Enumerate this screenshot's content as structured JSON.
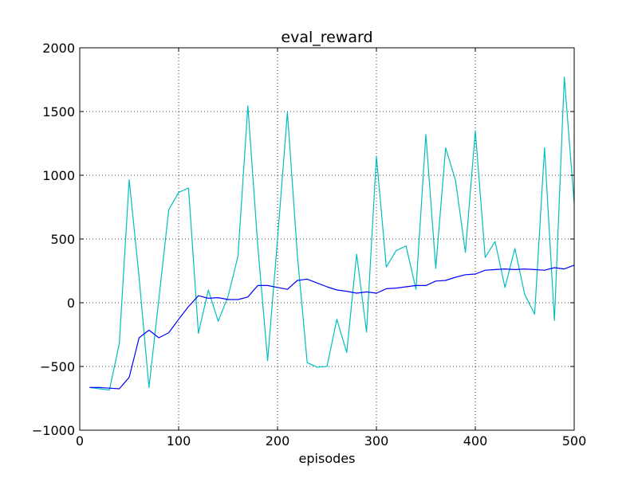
{
  "chart_data": {
    "type": "line",
    "title": "eval_reward",
    "xlabel": "episodes",
    "ylabel": "",
    "xlim": [
      0,
      500
    ],
    "ylim": [
      -1000,
      2000
    ],
    "xticks": [
      0,
      100,
      200,
      300,
      400,
      500
    ],
    "yticks": [
      -1000,
      -500,
      0,
      500,
      1000,
      1500,
      2000
    ],
    "xtick_labels": [
      "0",
      "100",
      "200",
      "300",
      "400",
      "500"
    ],
    "ytick_labels": [
      "−1000",
      "−500",
      "0",
      "500",
      "1000",
      "1500",
      "2000"
    ],
    "grid": true,
    "x": [
      10,
      20,
      30,
      40,
      50,
      60,
      70,
      80,
      90,
      100,
      110,
      120,
      130,
      140,
      150,
      160,
      170,
      180,
      190,
      200,
      210,
      220,
      230,
      240,
      250,
      260,
      270,
      280,
      290,
      300,
      310,
      320,
      330,
      340,
      350,
      360,
      370,
      380,
      390,
      400,
      410,
      420,
      430,
      440,
      450,
      460,
      470,
      480,
      490,
      500
    ],
    "series": [
      {
        "color": "#00bfbf",
        "values": [
          -665,
          -675,
          -685,
          -320,
          965,
          200,
          -665,
          30,
          730,
          865,
          900,
          -240,
          100,
          -145,
          50,
          365,
          1545,
          450,
          -455,
          500,
          1495,
          380,
          -470,
          -505,
          -500,
          -130,
          -390,
          380,
          -230,
          1150,
          280,
          410,
          445,
          105,
          1320,
          270,
          1215,
          960,
          395,
          1350,
          355,
          480,
          120,
          425,
          65,
          -90,
          1215,
          -140,
          1770,
          780
        ]
      },
      {
        "color": "#0000ff",
        "values": [
          -665,
          -665,
          -670,
          -675,
          -585,
          -275,
          -215,
          -275,
          -235,
          -130,
          -30,
          55,
          35,
          40,
          25,
          25,
          45,
          135,
          135,
          120,
          105,
          175,
          185,
          155,
          125,
          100,
          90,
          75,
          85,
          75,
          110,
          115,
          125,
          135,
          135,
          170,
          175,
          200,
          220,
          225,
          255,
          260,
          265,
          260,
          265,
          260,
          255,
          275,
          265,
          295
        ]
      }
    ]
  }
}
